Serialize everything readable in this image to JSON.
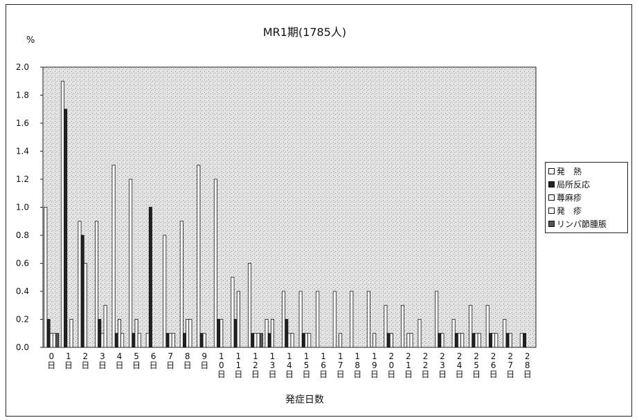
{
  "chart_data": {
    "type": "bar",
    "title": "MR1期(1785人)",
    "ylabel": "%",
    "xlabel": "発症日数",
    "ylim": [
      0,
      2.0
    ],
    "yticks": [
      "0.0",
      "0.2",
      "0.4",
      "0.6",
      "0.8",
      "1.0",
      "1.2",
      "1.4",
      "1.6",
      "1.8",
      "2.0"
    ],
    "categories": [
      "0日",
      "1日",
      "2日",
      "3日",
      "4日",
      "5日",
      "6日",
      "7日",
      "8日",
      "9日",
      "10日",
      "11日",
      "12日",
      "13日",
      "14日",
      "15日",
      "16日",
      "17日",
      "18日",
      "19日",
      "20日",
      "21日",
      "22日",
      "23日",
      "24日",
      "25日",
      "26日",
      "27日",
      "28日"
    ],
    "category_labels": [
      [
        "0",
        "日"
      ],
      [
        "1",
        "日"
      ],
      [
        "2",
        "日"
      ],
      [
        "3",
        "日"
      ],
      [
        "4",
        "日"
      ],
      [
        "5",
        "日"
      ],
      [
        "6",
        "日"
      ],
      [
        "7",
        "日"
      ],
      [
        "8",
        "日"
      ],
      [
        "9",
        "日"
      ],
      [
        "1",
        "0",
        "日"
      ],
      [
        "1",
        "1",
        "日"
      ],
      [
        "1",
        "2",
        "日"
      ],
      [
        "1",
        "3",
        "日"
      ],
      [
        "1",
        "4",
        "日"
      ],
      [
        "1",
        "5",
        "日"
      ],
      [
        "1",
        "6",
        "日"
      ],
      [
        "1",
        "7",
        "日"
      ],
      [
        "1",
        "8",
        "日"
      ],
      [
        "1",
        "9",
        "日"
      ],
      [
        "2",
        "0",
        "日"
      ],
      [
        "2",
        "1",
        "日"
      ],
      [
        "2",
        "2",
        "日"
      ],
      [
        "2",
        "3",
        "日"
      ],
      [
        "2",
        "4",
        "日"
      ],
      [
        "2",
        "5",
        "日"
      ],
      [
        "2",
        "6",
        "日"
      ],
      [
        "2",
        "7",
        "日"
      ],
      [
        "2",
        "8",
        "日"
      ]
    ],
    "grid": false,
    "legend_position": "right",
    "series": [
      {
        "name": "発　熱",
        "color": "#ffffff",
        "values": [
          1.0,
          1.9,
          0.9,
          0.9,
          1.3,
          1.2,
          0.1,
          0.8,
          0.9,
          1.3,
          1.2,
          0.5,
          0.6,
          0.2,
          0.4,
          0.4,
          0.4,
          0.4,
          0.4,
          0.4,
          0.3,
          0.3,
          0.2,
          0.4,
          0.2,
          0.3,
          0.3,
          0.2,
          0.1
        ]
      },
      {
        "name": "局所反応",
        "color": "#222222",
        "values": [
          0.2,
          1.7,
          0.8,
          0.2,
          0.1,
          0.1,
          1.0,
          0.1,
          0.1,
          0.1,
          0.2,
          0.2,
          0.1,
          0.1,
          0.2,
          0.1,
          0.0,
          0.0,
          0.0,
          0.0,
          0.1,
          0.0,
          0.0,
          0.1,
          0.1,
          0.1,
          0.1,
          0.1,
          0.1
        ]
      },
      {
        "name": "蕁麻疹",
        "color": "#f2f2f2",
        "values": [
          0.1,
          0.0,
          0.6,
          0.1,
          0.2,
          0.2,
          0.0,
          0.1,
          0.2,
          0.1,
          0.2,
          0.4,
          0.1,
          0.2,
          0.1,
          0.1,
          0.0,
          0.1,
          0.0,
          0.1,
          0.1,
          0.1,
          0.0,
          0.1,
          0.1,
          0.1,
          0.1,
          0.1,
          0.0
        ]
      },
      {
        "name": "発　疹",
        "color": "#ffffff",
        "values": [
          0.1,
          0.2,
          0.0,
          0.3,
          0.1,
          0.1,
          0.0,
          0.1,
          0.2,
          0.0,
          0.0,
          0.0,
          0.1,
          0.0,
          0.1,
          0.1,
          0.0,
          0.0,
          0.0,
          0.0,
          0.0,
          0.1,
          0.0,
          0.0,
          0.1,
          0.1,
          0.1,
          0.0,
          0.0
        ]
      },
      {
        "name": "リンパ節腫脹",
        "color": "#555555",
        "values": [
          0.1,
          0.0,
          0.0,
          0.0,
          0.0,
          0.0,
          0.0,
          0.0,
          0.0,
          0.0,
          0.0,
          0.0,
          0.1,
          0.0,
          0.0,
          0.0,
          0.0,
          0.0,
          0.0,
          0.0,
          0.0,
          0.0,
          0.0,
          0.0,
          0.0,
          0.0,
          0.0,
          0.0,
          0.0
        ]
      }
    ]
  }
}
